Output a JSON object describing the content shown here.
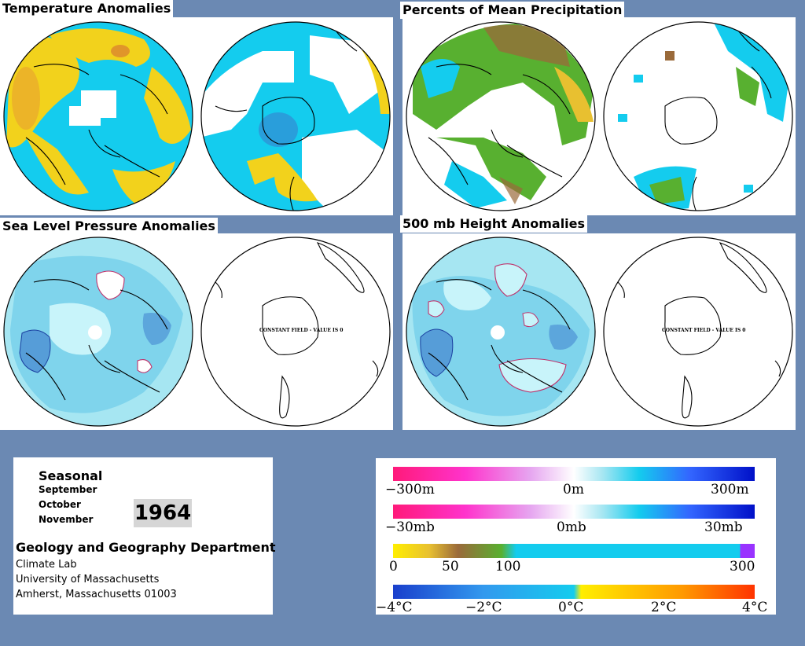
{
  "panels": {
    "temperature": {
      "title": "Temperature Anomalies"
    },
    "precipitation": {
      "title": "Percents of Mean Precipitation"
    },
    "sea_level_pressure": {
      "title": "Sea Level Pressure Anomalies"
    },
    "height_500mb": {
      "title": "500 mb Height Anomalies"
    }
  },
  "constant_field_note": "CONSTANT FIELD - VALUE IS 0",
  "info": {
    "heading": "Seasonal",
    "months": [
      "September",
      "October",
      "November"
    ],
    "year": "1964",
    "department": "Geology and Geography Department",
    "lab": "Climate Lab",
    "university": "University of Massachusetts",
    "address": "Amherst, Massachusetts 01003"
  },
  "legends": {
    "height": {
      "labels": [
        "−300m",
        "0m",
        "300m"
      ]
    },
    "pressure": {
      "labels": [
        "−30mb",
        "0mb",
        "30mb"
      ]
    },
    "precip": {
      "labels": [
        "0",
        "50",
        "100",
        "300"
      ]
    },
    "temp": {
      "labels": [
        "−4°C",
        "−2°C",
        "0°C",
        "2°C",
        "4°C"
      ]
    }
  },
  "colors": {
    "background": "#6b89b3",
    "cyan": "#14ccee",
    "light_cyan": "#c8f4fa",
    "yellow": "#f7dc14",
    "green": "#58b030",
    "brown": "#9a6a3a",
    "blue_contour": "#3a78cc",
    "magenta_contour": "#c0306a"
  }
}
